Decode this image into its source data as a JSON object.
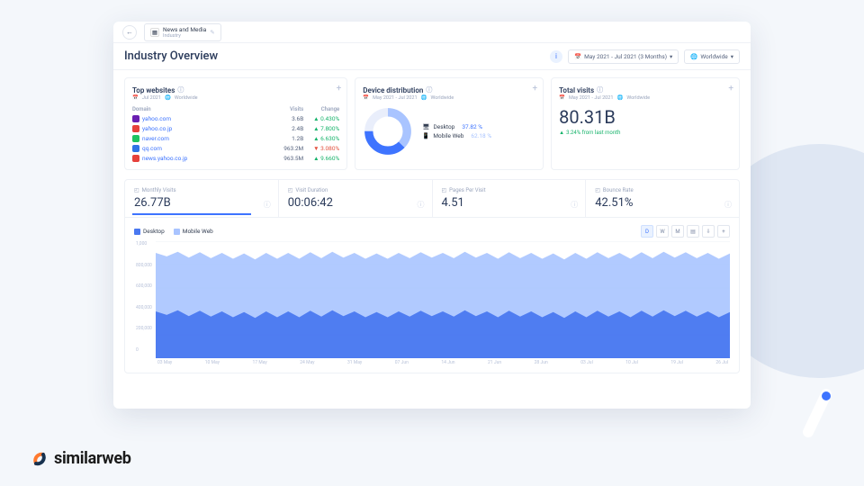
{
  "header": {
    "breadcrumb_label": "News and Media",
    "breadcrumb_sub": "Industry",
    "page_title": "Industry Overview",
    "date_range": "May 2021 - Jul 2021 (3 Months)",
    "region": "Worldwide"
  },
  "top_websites": {
    "title": "Top websites",
    "sub_date": "Jul 2021",
    "sub_region": "Worldwide",
    "columns": [
      "Domain",
      "Visits",
      "Change"
    ],
    "rows": [
      {
        "domain": "yahoo.com",
        "fav_color": "#6a1fb1",
        "visits": "3.6B",
        "change": "0.430%",
        "dir": "up"
      },
      {
        "domain": "yahoo.co.jp",
        "fav_color": "#e6413b",
        "visits": "2.4B",
        "change": "7.800%",
        "dir": "up"
      },
      {
        "domain": "naver.com",
        "fav_color": "#1fc361",
        "visits": "1.2B",
        "change": "6.630%",
        "dir": "up"
      },
      {
        "domain": "qq.com",
        "fav_color": "#2f74e6",
        "visits": "963.2M",
        "change": "3.080%",
        "dir": "down"
      },
      {
        "domain": "news.yahoo.co.jp",
        "fav_color": "#e6413b",
        "visits": "963.5M",
        "change": "9.660%",
        "dir": "up"
      }
    ]
  },
  "device_distribution": {
    "title": "Device distribution",
    "sub_date": "May 2021 - Jul 2021",
    "sub_region": "Worldwide",
    "desktop_label": "Desktop",
    "desktop_pct": "37.82 %",
    "mobile_label": "Mobile Web",
    "mobile_pct": "62.18 %",
    "colors": {
      "desktop": "#3e74ff",
      "mobile": "#a9c4ff",
      "ring_bg": "#e9eefb"
    }
  },
  "total_visits": {
    "title": "Total visits",
    "sub_date": "May 2021 - Jul 2021",
    "sub_region": "Worldwide",
    "value": "80.31B",
    "delta": "3.24% from last month"
  },
  "metrics": [
    {
      "label": "Monthly Visits",
      "value": "26.77B",
      "active": true
    },
    {
      "label": "Visit Duration",
      "value": "00:06:42",
      "active": false
    },
    {
      "label": "Pages Per Visit",
      "value": "4.51",
      "active": false
    },
    {
      "label": "Bounce Rate",
      "value": "42.51%",
      "active": false
    }
  ],
  "chart": {
    "legend": {
      "desktop": "Desktop",
      "mobile": "Mobile Web"
    },
    "colors": {
      "desktop": "#4a78f0",
      "mobile": "#a9c4ff",
      "grid": "#eef1f6"
    },
    "tools": [
      "D",
      "W",
      "M"
    ],
    "y_ticks": [
      "1,000",
      "800,000",
      "600,000",
      "400,000",
      "200,000",
      "0"
    ],
    "x_labels": [
      "03 May",
      "10 May",
      "17 May",
      "24 May",
      "31 May",
      "07 Jun",
      "14 Jun",
      "21 Jun",
      "28 Jun",
      "03 Jul",
      "10 Jul",
      "19 Jul",
      "26 Jul"
    ],
    "ylim": [
      0,
      1000000
    ],
    "mobile_series": [
      900,
      870,
      910,
      860,
      905,
      855,
      900,
      850,
      895,
      845,
      900,
      850,
      900,
      850,
      905,
      855,
      910,
      860,
      900,
      850,
      895,
      850,
      900,
      855,
      905,
      860,
      900,
      855,
      910,
      860,
      900,
      850,
      905,
      855,
      900,
      850,
      895,
      845,
      900,
      850,
      905,
      855,
      900,
      850,
      905,
      855,
      910,
      860,
      905,
      855,
      900,
      850,
      895
    ],
    "desktop_series": [
      400,
      370,
      410,
      360,
      405,
      355,
      400,
      350,
      395,
      345,
      400,
      350,
      400,
      350,
      405,
      355,
      410,
      360,
      400,
      350,
      395,
      350,
      400,
      355,
      405,
      360,
      400,
      355,
      410,
      360,
      400,
      350,
      405,
      355,
      400,
      350,
      395,
      345,
      400,
      350,
      405,
      355,
      400,
      350,
      405,
      355,
      410,
      360,
      405,
      355,
      400,
      350,
      395
    ]
  },
  "brand": {
    "name": "similarweb"
  }
}
